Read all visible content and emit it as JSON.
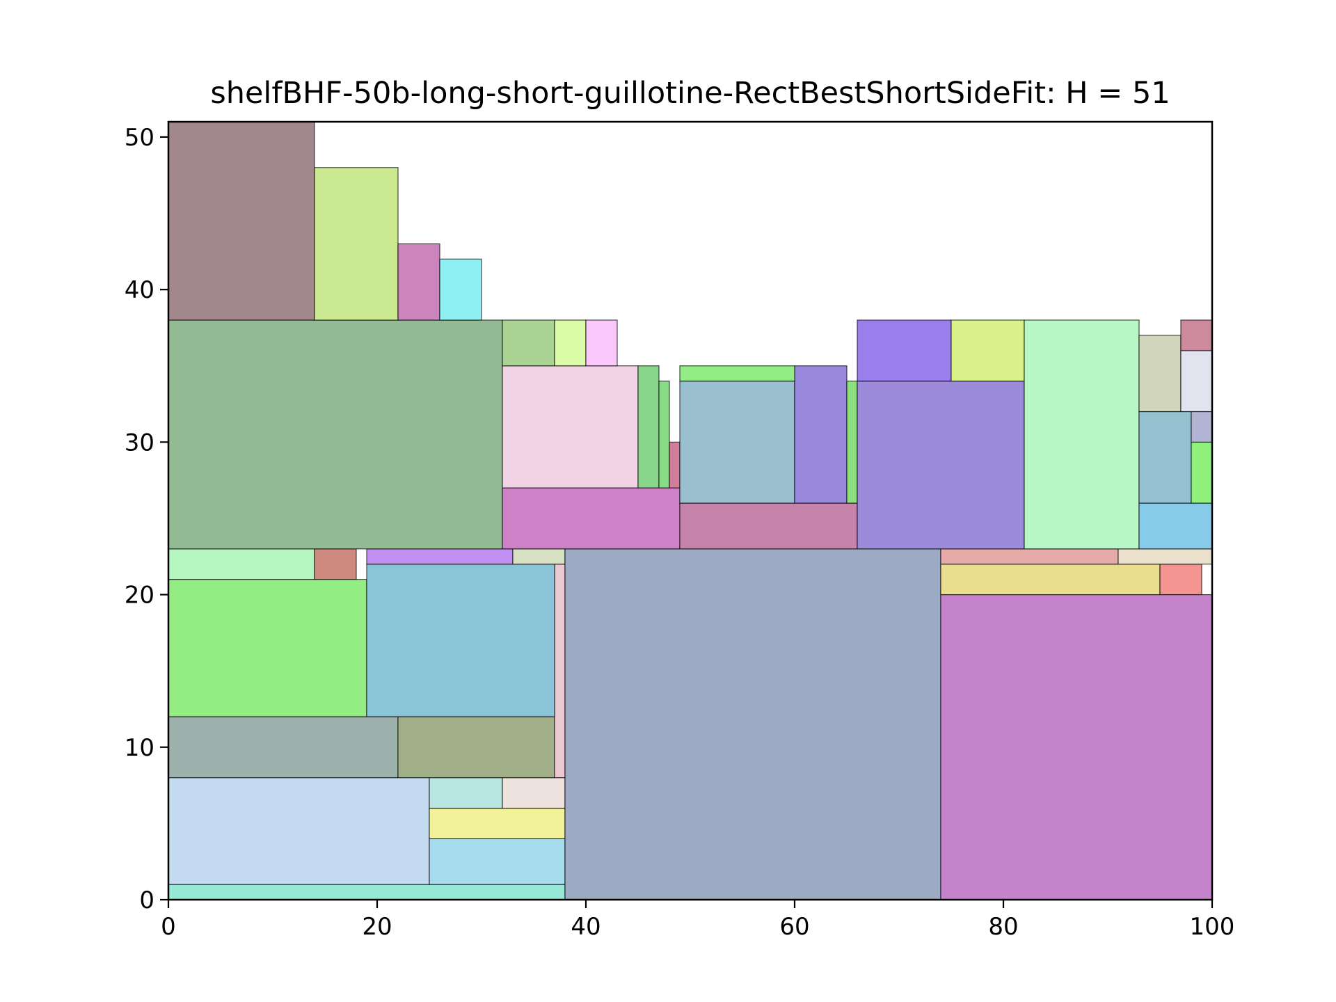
{
  "chart_data": {
    "type": "rectangle-packing",
    "title": "shelfBHF-50b-long-short-guillotine-RectBestShortSideFit: H = 51",
    "xlabel": "",
    "ylabel": "",
    "xlim": [
      0,
      100
    ],
    "ylim": [
      0,
      51
    ],
    "xticks": [
      0,
      20,
      40,
      60,
      80,
      100
    ],
    "yticks": [
      0,
      10,
      20,
      30,
      40,
      50
    ],
    "grid": false,
    "rects": [
      {
        "x": 0,
        "y": 0,
        "w": 38,
        "h": 1,
        "color": "#98e8d6"
      },
      {
        "x": 0,
        "y": 1,
        "w": 25,
        "h": 7,
        "color": "#c4daf0"
      },
      {
        "x": 25,
        "y": 1,
        "w": 13,
        "h": 3,
        "color": "#a7dbee"
      },
      {
        "x": 25,
        "y": 4,
        "w": 13,
        "h": 2,
        "color": "#f2f29a"
      },
      {
        "x": 25,
        "y": 6,
        "w": 7,
        "h": 2,
        "color": "#bae6e2"
      },
      {
        "x": 32,
        "y": 6,
        "w": 6,
        "h": 2,
        "color": "#ede2dd"
      },
      {
        "x": 0,
        "y": 8,
        "w": 22,
        "h": 4,
        "color": "#9db1ad"
      },
      {
        "x": 22,
        "y": 8,
        "w": 15,
        "h": 4,
        "color": "#a1b089"
      },
      {
        "x": 37,
        "y": 8,
        "w": 1,
        "h": 14,
        "color": "#ecc8d1"
      },
      {
        "x": 0,
        "y": 12,
        "w": 19,
        "h": 9,
        "color": "#93ed82"
      },
      {
        "x": 19,
        "y": 12,
        "w": 18,
        "h": 10,
        "color": "#8ac4d9"
      },
      {
        "x": 0,
        "y": 21,
        "w": 14,
        "h": 2,
        "color": "#b5f5bf"
      },
      {
        "x": 14,
        "y": 21,
        "w": 4,
        "h": 2,
        "color": "#cf8a80"
      },
      {
        "x": 19,
        "y": 22,
        "w": 14,
        "h": 1,
        "color": "#c290f2"
      },
      {
        "x": 33,
        "y": 22,
        "w": 5,
        "h": 1,
        "color": "#d8e1c3"
      },
      {
        "x": 38,
        "y": 0,
        "w": 36,
        "h": 23,
        "color": "#9caac4"
      },
      {
        "x": 74,
        "y": 0,
        "w": 26,
        "h": 20,
        "color": "#c583cb"
      },
      {
        "x": 74,
        "y": 20,
        "w": 21,
        "h": 2,
        "color": "#eadd8e"
      },
      {
        "x": 95,
        "y": 20,
        "w": 4,
        "h": 2,
        "color": "#f49490"
      },
      {
        "x": 74,
        "y": 22,
        "w": 17,
        "h": 1,
        "color": "#e6aaa9"
      },
      {
        "x": 91,
        "y": 22,
        "w": 9,
        "h": 1,
        "color": "#ebe0cb"
      },
      {
        "x": 0,
        "y": 23,
        "w": 32,
        "h": 15,
        "color": "#93bb94"
      },
      {
        "x": 32,
        "y": 23,
        "w": 17,
        "h": 4,
        "color": "#cf81c7"
      },
      {
        "x": 32,
        "y": 27,
        "w": 13,
        "h": 8,
        "color": "#f1d3e3"
      },
      {
        "x": 45,
        "y": 27,
        "w": 2,
        "h": 8,
        "color": "#88d68a"
      },
      {
        "x": 47,
        "y": 27,
        "w": 1,
        "h": 7,
        "color": "#88dc88"
      },
      {
        "x": 48,
        "y": 27,
        "w": 1,
        "h": 3,
        "color": "#d17d9c"
      },
      {
        "x": 32,
        "y": 35,
        "w": 5,
        "h": 3,
        "color": "#aad394"
      },
      {
        "x": 37,
        "y": 35,
        "w": 3,
        "h": 3,
        "color": "#dafca8"
      },
      {
        "x": 40,
        "y": 35,
        "w": 3,
        "h": 3,
        "color": "#fbc8fb"
      },
      {
        "x": 49,
        "y": 23,
        "w": 17,
        "h": 3,
        "color": "#c583a9"
      },
      {
        "x": 49,
        "y": 26,
        "w": 11,
        "h": 8,
        "color": "#9abfce"
      },
      {
        "x": 60,
        "y": 26,
        "w": 5,
        "h": 9,
        "color": "#9889dc"
      },
      {
        "x": 65,
        "y": 26,
        "w": 1,
        "h": 8,
        "color": "#8ee07f"
      },
      {
        "x": 49,
        "y": 34,
        "w": 11,
        "h": 1,
        "color": "#94ec86"
      },
      {
        "x": 66,
        "y": 23,
        "w": 16,
        "h": 11,
        "color": "#9c8bdb"
      },
      {
        "x": 66,
        "y": 34,
        "w": 9,
        "h": 4,
        "color": "#9a7fec"
      },
      {
        "x": 75,
        "y": 34,
        "w": 7,
        "h": 4,
        "color": "#d9f38a"
      },
      {
        "x": 82,
        "y": 23,
        "w": 11,
        "h": 15,
        "color": "#b8f8c6"
      },
      {
        "x": 93,
        "y": 23,
        "w": 7,
        "h": 3,
        "color": "#88cbe8"
      },
      {
        "x": 93,
        "y": 26,
        "w": 5,
        "h": 6,
        "color": "#95c0d0"
      },
      {
        "x": 98,
        "y": 26,
        "w": 2,
        "h": 4,
        "color": "#8ff07c"
      },
      {
        "x": 98,
        "y": 30,
        "w": 2,
        "h": 2,
        "color": "#b1b5d3"
      },
      {
        "x": 93,
        "y": 32,
        "w": 4,
        "h": 5,
        "color": "#d1d6bd"
      },
      {
        "x": 97,
        "y": 32,
        "w": 3,
        "h": 4,
        "color": "#e1e3ef"
      },
      {
        "x": 97,
        "y": 36,
        "w": 3,
        "h": 2,
        "color": "#cd8a9c"
      },
      {
        "x": 0,
        "y": 38,
        "w": 14,
        "h": 13,
        "color": "#a2888c"
      },
      {
        "x": 14,
        "y": 38,
        "w": 8,
        "h": 10,
        "color": "#cbe990"
      },
      {
        "x": 22,
        "y": 38,
        "w": 4,
        "h": 5,
        "color": "#cc84bc"
      },
      {
        "x": 26,
        "y": 38,
        "w": 4,
        "h": 4,
        "color": "#8ef0f2"
      }
    ]
  }
}
